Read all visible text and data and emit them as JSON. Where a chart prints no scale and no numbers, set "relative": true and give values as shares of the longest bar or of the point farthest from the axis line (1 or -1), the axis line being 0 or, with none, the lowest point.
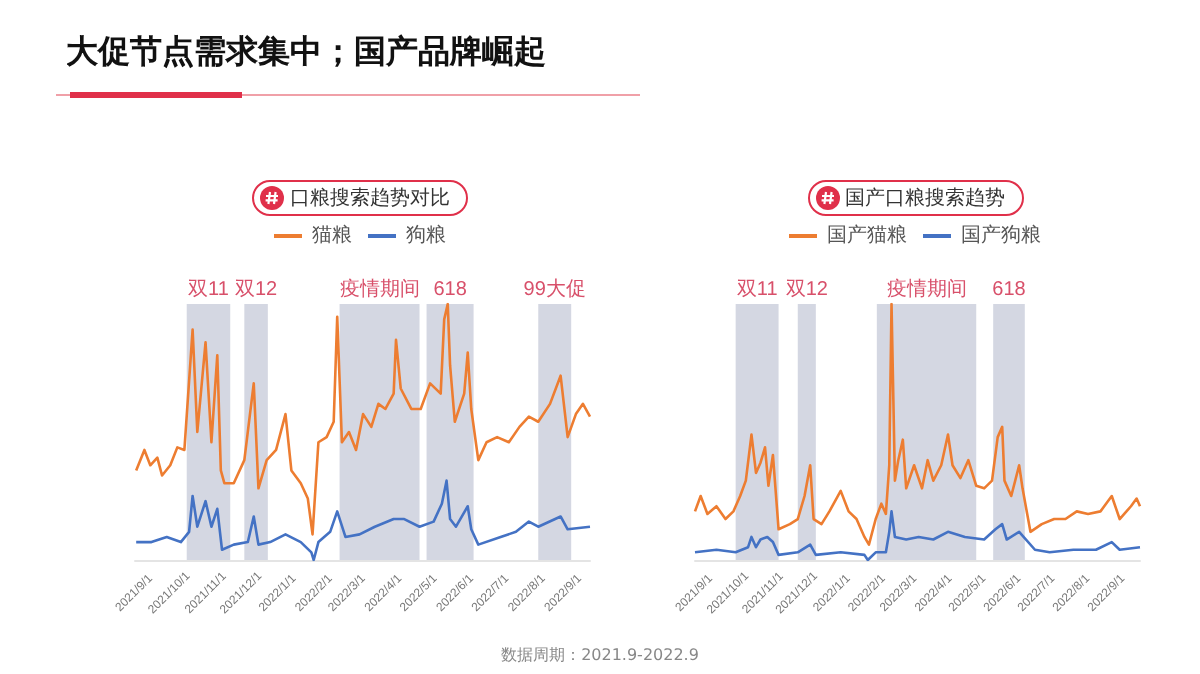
{
  "chart_data": [
    {
      "type": "other",
      "title": "大促节点需求集中；国产品牌崛起",
      "annotations": [
        "数据周期：2021.9-2022.9"
      ]
    },
    {
      "type": "line",
      "title": "口粮搜索趋势对比",
      "relative": true,
      "legend": "top",
      "tick_labels": "x",
      "xlim": [
        "2021-09-01",
        "2022-09-23"
      ],
      "xticks": [
        {
          "value": "2021-09-01",
          "label": "2021/9/1"
        },
        {
          "value": "2021-10-01",
          "label": "2021/10/1"
        },
        {
          "value": "2021-11-01",
          "label": "2021/11/1"
        },
        {
          "value": "2021-12-01",
          "label": "2021/12/1"
        },
        {
          "value": "2022-01-01",
          "label": "2022/1/1"
        },
        {
          "value": "2022-02-01",
          "label": "2022/2/1"
        },
        {
          "value": "2022-03-01",
          "label": "2022/3/1"
        },
        {
          "value": "2022-04-01",
          "label": "2022/4/1"
        },
        {
          "value": "2022-05-01",
          "label": "2022/5/1"
        },
        {
          "value": "2022-06-01",
          "label": "2022/6/1"
        },
        {
          "value": "2022-07-01",
          "label": "2022/7/1"
        },
        {
          "value": "2022-08-01",
          "label": "2022/8/1"
        },
        {
          "value": "2022-09-01",
          "label": "2022/9/1"
        }
      ],
      "bands": [
        {
          "axis": "x",
          "from": "2021-10-15",
          "to": "2021-11-21",
          "label": "双11",
          "color": "#c5cad8"
        },
        {
          "axis": "x",
          "from": "2021-12-03",
          "to": "2021-12-23",
          "label": "双12",
          "color": "#c5cad8"
        },
        {
          "axis": "x",
          "from": "2022-02-22",
          "to": "2022-05-01",
          "label": "疫情期间",
          "color": "#c5cad8"
        },
        {
          "axis": "x",
          "from": "2022-05-07",
          "to": "2022-06-16",
          "label": "618",
          "color": "#c5cad8"
        },
        {
          "axis": "x",
          "from": "2022-08-10",
          "to": "2022-09-07",
          "label": "99大促",
          "color": "#c5cad8"
        }
      ],
      "series": [
        {
          "name": "猫粮",
          "color": "#ed7d31",
          "x": [
            "2021-09-02",
            "2021-09-09",
            "2021-09-14",
            "2021-09-20",
            "2021-09-24",
            "2021-10-01",
            "2021-10-07",
            "2021-10-13",
            "2021-10-20",
            "2021-10-24",
            "2021-10-31",
            "2021-11-05",
            "2021-11-10",
            "2021-11-13",
            "2021-11-16",
            "2021-11-24",
            "2021-12-03",
            "2021-12-11",
            "2021-12-15",
            "2021-12-22",
            "2021-12-30",
            "2022-01-07",
            "2022-01-12",
            "2022-01-20",
            "2022-01-26",
            "2022-01-30",
            "2022-02-04",
            "2022-02-11",
            "2022-02-17",
            "2022-02-20",
            "2022-02-24",
            "2022-03-02",
            "2022-03-08",
            "2022-03-14",
            "2022-03-21",
            "2022-03-27",
            "2022-04-02",
            "2022-04-09",
            "2022-04-11",
            "2022-04-15",
            "2022-04-24",
            "2022-05-02",
            "2022-05-10",
            "2022-05-19",
            "2022-05-22",
            "2022-05-25",
            "2022-05-27",
            "2022-05-31",
            "2022-06-08",
            "2022-06-11",
            "2022-06-14",
            "2022-06-20",
            "2022-06-27",
            "2022-07-06",
            "2022-07-16",
            "2022-07-25",
            "2022-08-02",
            "2022-08-10",
            "2022-08-20",
            "2022-08-29",
            "2022-09-04",
            "2022-09-11",
            "2022-09-17",
            "2022-09-23"
          ],
          "values": [
            0.35,
            0.43,
            0.37,
            0.4,
            0.33,
            0.37,
            0.44,
            0.43,
            0.9,
            0.5,
            0.85,
            0.46,
            0.8,
            0.35,
            0.3,
            0.3,
            0.39,
            0.69,
            0.28,
            0.39,
            0.43,
            0.57,
            0.35,
            0.3,
            0.24,
            0.1,
            0.46,
            0.48,
            0.54,
            0.95,
            0.46,
            0.5,
            0.43,
            0.57,
            0.52,
            0.61,
            0.59,
            0.65,
            0.86,
            0.67,
            0.59,
            0.59,
            0.69,
            0.65,
            0.94,
            1,
            0.76,
            0.54,
            0.65,
            0.81,
            0.59,
            0.39,
            0.46,
            0.48,
            0.46,
            0.52,
            0.56,
            0.54,
            0.61,
            0.72,
            0.48,
            0.57,
            0.61,
            0.56
          ]
        },
        {
          "name": "狗粮",
          "color": "#4472c4",
          "x": [
            "2021-09-02",
            "2021-09-15",
            "2021-09-28",
            "2021-10-10",
            "2021-10-17",
            "2021-10-20",
            "2021-10-24",
            "2021-10-31",
            "2021-11-05",
            "2021-11-10",
            "2021-11-14",
            "2021-11-24",
            "2021-12-06",
            "2021-12-11",
            "2021-12-15",
            "2021-12-25",
            "2022-01-07",
            "2022-01-20",
            "2022-01-29",
            "2022-01-31",
            "2022-02-04",
            "2022-02-14",
            "2022-02-20",
            "2022-02-27",
            "2022-03-11",
            "2022-03-24",
            "2022-04-09",
            "2022-04-18",
            "2022-05-01",
            "2022-05-13",
            "2022-05-20",
            "2022-05-24",
            "2022-05-27",
            "2022-06-01",
            "2022-06-11",
            "2022-06-14",
            "2022-06-20",
            "2022-07-09",
            "2022-07-22",
            "2022-08-02",
            "2022-08-10",
            "2022-08-29",
            "2022-09-04",
            "2022-09-23"
          ],
          "values": [
            0.07,
            0.07,
            0.09,
            0.07,
            0.11,
            0.25,
            0.13,
            0.23,
            0.13,
            0.2,
            0.04,
            0.06,
            0.07,
            0.17,
            0.06,
            0.07,
            0.1,
            0.07,
            0.03,
            0,
            0.07,
            0.11,
            0.19,
            0.09,
            0.1,
            0.13,
            0.16,
            0.16,
            0.13,
            0.15,
            0.22,
            0.31,
            0.16,
            0.13,
            0.21,
            0.12,
            0.06,
            0.09,
            0.11,
            0.15,
            0.13,
            0.17,
            0.12,
            0.13
          ]
        }
      ]
    },
    {
      "type": "line",
      "title": "国产口粮搜索趋势",
      "relative": true,
      "legend": "top",
      "tick_labels": "x",
      "xlim": [
        "2021-09-01",
        "2022-09-30"
      ],
      "xticks": [
        {
          "value": "2021-09-01",
          "label": "2021/9/1"
        },
        {
          "value": "2021-10-01",
          "label": "2021/10/1"
        },
        {
          "value": "2021-11-01",
          "label": "2021/11/1"
        },
        {
          "value": "2021-12-01",
          "label": "2021/12/1"
        },
        {
          "value": "2022-01-01",
          "label": "2022/1/1"
        },
        {
          "value": "2022-02-01",
          "label": "2022/2/1"
        },
        {
          "value": "2022-03-01",
          "label": "2022/3/1"
        },
        {
          "value": "2022-04-01",
          "label": "2022/4/1"
        },
        {
          "value": "2022-05-01",
          "label": "2022/5/1"
        },
        {
          "value": "2022-06-01",
          "label": "2022/6/1"
        },
        {
          "value": "2022-07-01",
          "label": "2022/7/1"
        },
        {
          "value": "2022-08-01",
          "label": "2022/8/1"
        },
        {
          "value": "2022-09-01",
          "label": "2022/9/1"
        }
      ],
      "bands": [
        {
          "axis": "x",
          "from": "2021-10-07",
          "to": "2021-11-14",
          "label": "双11",
          "color": "#c5cad8"
        },
        {
          "axis": "x",
          "from": "2021-12-01",
          "to": "2021-12-17",
          "label": "双12",
          "color": "#c5cad8"
        },
        {
          "axis": "x",
          "from": "2022-02-09",
          "to": "2022-05-08",
          "label": "疫情期间",
          "color": "#c5cad8"
        },
        {
          "axis": "x",
          "from": "2022-05-23",
          "to": "2022-06-20",
          "label": "618",
          "color": "#c5cad8"
        }
      ],
      "series": [
        {
          "name": "国产猫粮",
          "color": "#ed7d31",
          "x": [
            "2021-09-01",
            "2021-09-06",
            "2021-09-12",
            "2021-09-20",
            "2021-09-28",
            "2021-10-05",
            "2021-10-11",
            "2021-10-16",
            "2021-10-21",
            "2021-10-25",
            "2021-10-29",
            "2021-11-02",
            "2021-11-05",
            "2021-11-09",
            "2021-11-14",
            "2021-11-24",
            "2021-12-01",
            "2021-12-07",
            "2021-12-12",
            "2021-12-15",
            "2021-12-22",
            "2021-12-29",
            "2022-01-08",
            "2022-01-15",
            "2022-01-22",
            "2022-01-29",
            "2022-02-02",
            "2022-02-08",
            "2022-02-13",
            "2022-02-17",
            "2022-02-20",
            "2022-02-22",
            "2022-02-25",
            "2022-02-28",
            "2022-03-04",
            "2022-03-07",
            "2022-03-14",
            "2022-03-21",
            "2022-03-26",
            "2022-03-31",
            "2022-04-07",
            "2022-04-13",
            "2022-04-17",
            "2022-04-24",
            "2022-05-01",
            "2022-05-08",
            "2022-05-15",
            "2022-05-22",
            "2022-05-27",
            "2022-05-31",
            "2022-06-02",
            "2022-06-08",
            "2022-06-15",
            "2022-06-18",
            "2022-06-25",
            "2022-07-05",
            "2022-07-16",
            "2022-07-26",
            "2022-08-05",
            "2022-08-15",
            "2022-08-26",
            "2022-09-05",
            "2022-09-12",
            "2022-09-22",
            "2022-09-27",
            "2022-09-30"
          ],
          "values": [
            0.19,
            0.25,
            0.18,
            0.21,
            0.16,
            0.19,
            0.25,
            0.31,
            0.49,
            0.34,
            0.38,
            0.44,
            0.29,
            0.41,
            0.12,
            0.14,
            0.16,
            0.25,
            0.37,
            0.16,
            0.14,
            0.19,
            0.27,
            0.19,
            0.16,
            0.09,
            0.06,
            0.16,
            0.22,
            0.18,
            0.37,
            1,
            0.31,
            0.39,
            0.47,
            0.28,
            0.37,
            0.28,
            0.39,
            0.31,
            0.37,
            0.49,
            0.37,
            0.32,
            0.39,
            0.29,
            0.28,
            0.31,
            0.48,
            0.52,
            0.31,
            0.25,
            0.37,
            0.28,
            0.11,
            0.14,
            0.16,
            0.16,
            0.19,
            0.18,
            0.19,
            0.25,
            0.16,
            0.21,
            0.24,
            0.21
          ]
        },
        {
          "name": "国产狗粮",
          "color": "#4472c4",
          "x": [
            "2021-09-01",
            "2021-09-20",
            "2021-10-07",
            "2021-10-18",
            "2021-10-21",
            "2021-10-25",
            "2021-10-29",
            "2021-11-04",
            "2021-11-09",
            "2021-11-14",
            "2021-12-01",
            "2021-12-12",
            "2021-12-17",
            "2022-01-08",
            "2022-01-29",
            "2022-02-01",
            "2022-02-08",
            "2022-02-17",
            "2022-02-20",
            "2022-02-22",
            "2022-02-25",
            "2022-03-07",
            "2022-03-18",
            "2022-03-31",
            "2022-04-13",
            "2022-04-28",
            "2022-05-15",
            "2022-05-25",
            "2022-05-31",
            "2022-06-04",
            "2022-06-15",
            "2022-06-29",
            "2022-07-12",
            "2022-08-02",
            "2022-08-22",
            "2022-09-05",
            "2022-09-12",
            "2022-09-30"
          ],
          "values": [
            0.03,
            0.04,
            0.03,
            0.05,
            0.09,
            0.05,
            0.08,
            0.09,
            0.07,
            0.02,
            0.03,
            0.06,
            0.02,
            0.03,
            0.02,
            0,
            0.03,
            0.03,
            0.11,
            0.19,
            0.09,
            0.08,
            0.09,
            0.08,
            0.11,
            0.09,
            0.08,
            0.12,
            0.14,
            0.08,
            0.11,
            0.04,
            0.03,
            0.04,
            0.04,
            0.07,
            0.04,
            0.05
          ]
        }
      ]
    }
  ]
}
